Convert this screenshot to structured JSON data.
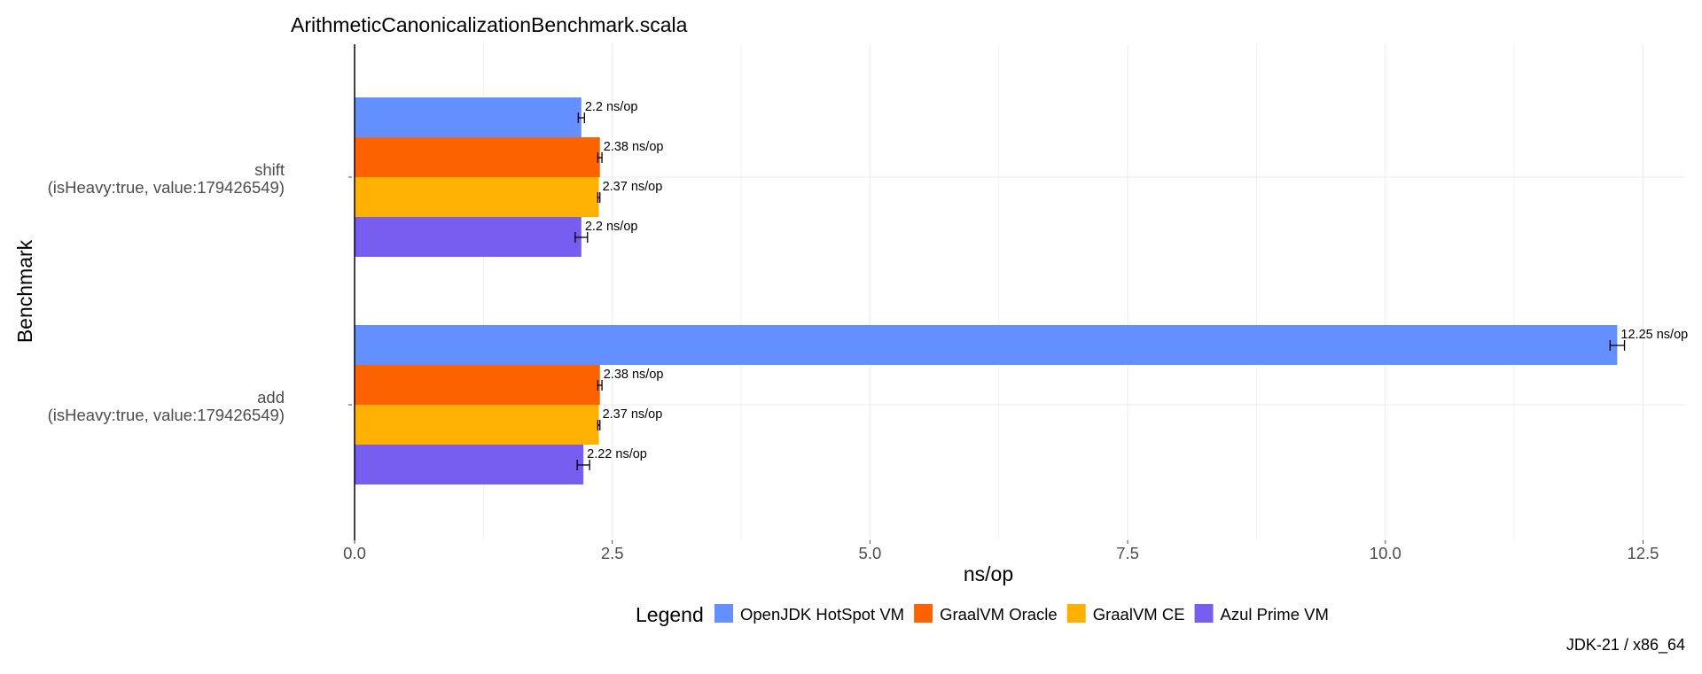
{
  "chart_data": {
    "type": "bar",
    "orientation": "horizontal",
    "title": "ArithmeticCanonicalizationBenchmark.scala",
    "xlabel": "ns/op",
    "ylabel": "Benchmark",
    "xlim": [
      0,
      12.9
    ],
    "xticks": [
      0.0,
      2.5,
      5.0,
      7.5,
      10.0,
      12.5
    ],
    "xtick_labels": [
      "0.0",
      "2.5",
      "5.0",
      "7.5",
      "10.0",
      "12.5"
    ],
    "grid": true,
    "legend_title": "Legend",
    "legend_position": "bottom",
    "caption": "JDK-21 / x86_64",
    "categories": [
      {
        "name": "shift",
        "params": "(isHeavy:true, value:179426549)"
      },
      {
        "name": "add",
        "params": "(isHeavy:true, value:179426549)"
      }
    ],
    "series": [
      {
        "name": "OpenJDK HotSpot VM",
        "color": "#648FFF",
        "values": [
          2.2,
          12.25
        ],
        "errors": [
          0.03,
          0.07
        ],
        "labels": [
          "2.2 ns/op",
          "12.25 ns/op"
        ]
      },
      {
        "name": "GraalVM Oracle",
        "color": "#FE6100",
        "values": [
          2.38,
          2.38
        ],
        "errors": [
          0.02,
          0.02
        ],
        "labels": [
          "2.38 ns/op",
          "2.38 ns/op"
        ]
      },
      {
        "name": "GraalVM CE",
        "color": "#FFB000",
        "values": [
          2.37,
          2.37
        ],
        "errors": [
          0.01,
          0.01
        ],
        "labels": [
          "2.37 ns/op",
          "2.37 ns/op"
        ]
      },
      {
        "name": "Azul Prime VM",
        "color": "#785EF0",
        "values": [
          2.2,
          2.22
        ],
        "errors": [
          0.06,
          0.06
        ],
        "labels": [
          "2.2 ns/op",
          "2.22 ns/op"
        ]
      }
    ]
  }
}
